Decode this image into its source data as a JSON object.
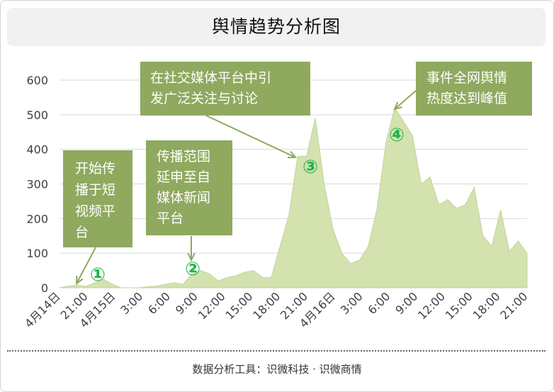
{
  "title": "舆情趋势分析图",
  "footer": "数据分析工具：识微科技 · 识微商情",
  "colors": {
    "area_fill": "#d3e2ae",
    "area_stroke": "#c3d69b",
    "callout_fill": "#8fa95f",
    "callout_text": "#ffffff",
    "marker": "#22b14c",
    "grid": "#d9d9d9",
    "axis_text": "#404040"
  },
  "chart_data": {
    "type": "area",
    "title": "",
    "xlabel": "",
    "ylabel": "",
    "ylim": [
      0,
      600
    ],
    "yticks": [
      0,
      100,
      200,
      300,
      400,
      500,
      600
    ],
    "grid": true,
    "xtick_labels": [
      "4月14日",
      "21:00",
      "4月15日",
      "3:00",
      "6:00",
      "9:00",
      "12:00",
      "15:00",
      "18:00",
      "21:00",
      "4月16日",
      "3:00",
      "6:00",
      "9:00",
      "12:00",
      "15:00",
      "18:00",
      "21:00"
    ],
    "values": [
      0,
      5,
      8,
      4,
      15,
      25,
      10,
      0,
      0,
      0,
      3,
      5,
      10,
      15,
      10,
      40,
      50,
      40,
      20,
      30,
      35,
      45,
      50,
      30,
      30,
      120,
      210,
      380,
      380,
      490,
      300,
      170,
      100,
      70,
      80,
      120,
      230,
      420,
      520,
      480,
      440,
      300,
      320,
      240,
      255,
      230,
      240,
      290,
      150,
      120,
      225,
      105,
      135,
      100
    ],
    "annotations": [
      {
        "marker": "①",
        "text": [
          "开始传",
          "播于短",
          "视频平",
          "台"
        ]
      },
      {
        "marker": "②",
        "text": [
          "传播范围",
          "延申至自",
          "媒体新闻",
          "平台"
        ]
      },
      {
        "marker": "③",
        "text": [
          "在社交媒体平台中引",
          "发广泛关注与讨论"
        ]
      },
      {
        "marker": "④",
        "text": [
          "事件全网舆情",
          "热度达到峰值"
        ]
      }
    ]
  }
}
